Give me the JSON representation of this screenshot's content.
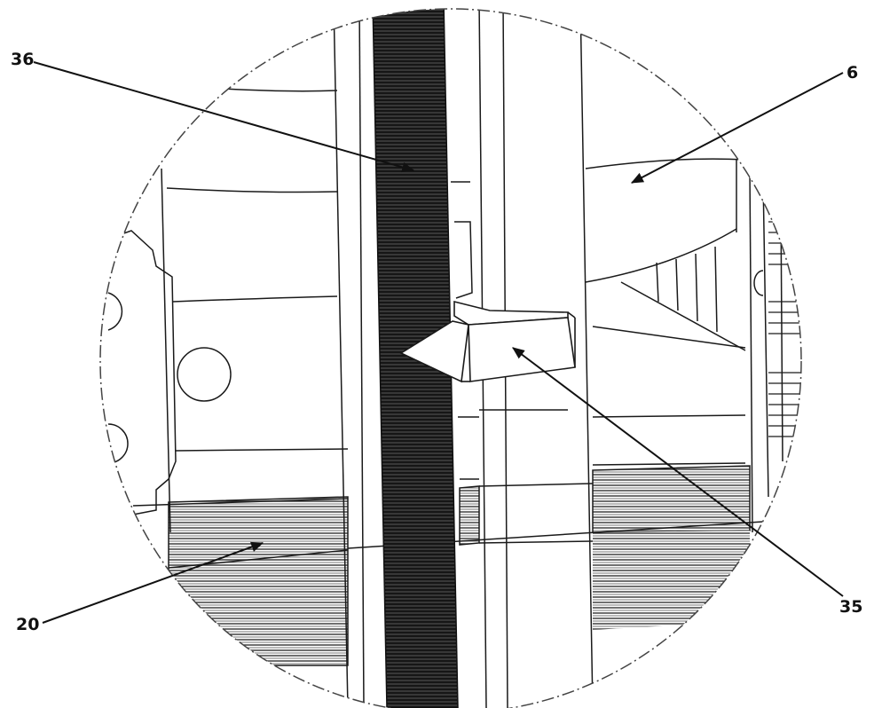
{
  "callouts": {
    "c36": "36",
    "c6": "6",
    "c35": "35",
    "c20": "20"
  },
  "colors": {
    "background": "#ffffff",
    "line": "#1a1a1a",
    "dark_hatch": "#1c1c1c",
    "hatch": "#333333"
  }
}
